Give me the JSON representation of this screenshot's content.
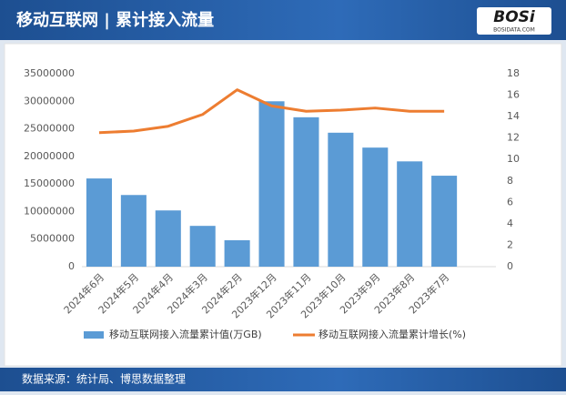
{
  "header": {
    "logo": "BOSi",
    "logo_url": "BOSIDATA.COM"
  },
  "footer": {
    "source": "数据来源：统计局、博思数据整理"
  },
  "chart_data": {
    "type": "bar_line",
    "title": "移动互联网 | 累计接入流量",
    "categories": [
      "2024年6月",
      "2024年5月",
      "2024年4月",
      "2024年3月",
      "2024年2月",
      "2023年12月",
      "2023年11月",
      "2023年10月",
      "2023年9月",
      "2023年8月",
      "2023年7月",
      null
    ],
    "series": [
      {
        "name": "移动互联网接入流量累计值(万GB)",
        "color": "#5b9bd5",
        "type": "bar",
        "values": [
          16000000,
          13000000,
          10200000,
          7400000,
          4800000,
          30000000,
          27100000,
          24300000,
          21600000,
          19100000,
          16500000,
          null
        ]
      },
      {
        "name": "移动互联网接入流量累计增长(%)",
        "color": "#ed7d31",
        "type": "line",
        "axis": "y2",
        "values": [
          12.5,
          12.65,
          13.1,
          14.2,
          16.5,
          15.0,
          14.5,
          14.6,
          14.8,
          14.5,
          14.5,
          null
        ]
      }
    ],
    "ylim": [
      0,
      35000000
    ],
    "yticks": [
      0,
      5000000,
      10000000,
      15000000,
      20000000,
      25000000,
      30000000,
      35000000
    ],
    "y2lim": [
      0,
      18
    ],
    "y2ticks": [
      0,
      2,
      4,
      6,
      8,
      10,
      12,
      14,
      16,
      18
    ],
    "legend": "bottom",
    "grid": false
  }
}
